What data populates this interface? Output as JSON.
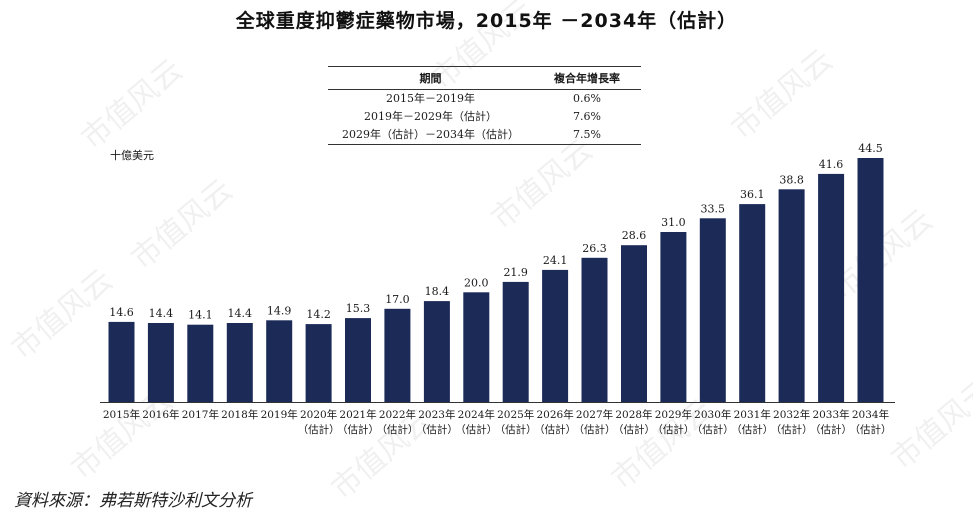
{
  "title": "全球重度抑鬱症藥物市場，2015年 －2034年（估計）",
  "cagr_table": {
    "headers": [
      "期間",
      "複合年增長率"
    ],
    "rows": [
      {
        "period": "2015年－2019年",
        "rate": "0.6%"
      },
      {
        "period": "2019年－2029年（估計）",
        "rate": "7.6%"
      },
      {
        "period": "2029年（估計）－2034年（估計）",
        "rate": "7.5%"
      }
    ]
  },
  "unit_label": "十億美元",
  "source": "資料來源：弗若斯特沙利文分析",
  "watermark": "市值风云",
  "colors": {
    "bar": "#1b2a57"
  },
  "chart_data": {
    "type": "bar",
    "categories": [
      "2015年",
      "2016年",
      "2017年",
      "2018年",
      "2019年",
      "2020年",
      "2021年",
      "2022年",
      "2023年",
      "2024年",
      "2025年",
      "2026年",
      "2027年",
      "2028年",
      "2029年",
      "2030年",
      "2031年",
      "2032年",
      "2033年",
      "2034年"
    ],
    "estimate_suffix": "（估計）",
    "estimated_from_index": 5,
    "values": [
      14.6,
      14.4,
      14.1,
      14.4,
      14.9,
      14.2,
      15.3,
      17.0,
      18.4,
      20.0,
      21.9,
      24.1,
      26.3,
      28.6,
      31.0,
      33.5,
      36.1,
      38.8,
      41.6,
      44.5
    ],
    "ylabel": "十億美元",
    "ylim": [
      0,
      44.5
    ],
    "grid": false,
    "legend": false
  }
}
